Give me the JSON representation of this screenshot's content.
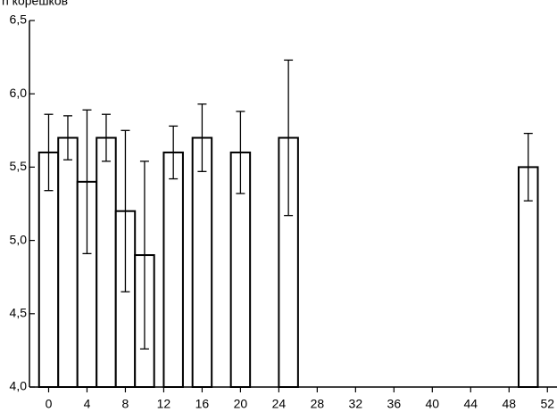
{
  "chart_data": {
    "type": "bar",
    "y_label": "n корешков",
    "x": [
      0,
      2,
      4,
      6,
      8,
      10,
      13,
      16,
      20,
      25,
      50
    ],
    "series": [
      {
        "color": "#000000",
        "values": [
          5.6,
          5.7,
          5.4,
          5.7,
          5.2,
          4.9,
          5.6,
          5.7,
          5.6,
          5.7,
          5.5
        ],
        "errors": [
          0.26,
          0.15,
          0.49,
          0.16,
          0.55,
          0.64,
          0.18,
          0.23,
          0.28,
          0.53,
          0.23
        ]
      }
    ],
    "xlim": [
      -2,
      53
    ],
    "xticks": [
      0,
      4,
      8,
      12,
      16,
      20,
      24,
      28,
      32,
      36,
      40,
      44,
      48,
      52
    ],
    "ylim": [
      4.0,
      6.5
    ],
    "yticks": [
      {
        "value": 4.0,
        "label": "4,0"
      },
      {
        "value": 4.5,
        "label": "4,5"
      },
      {
        "value": 5.0,
        "label": "5,0"
      },
      {
        "value": 5.5,
        "label": "5,5"
      },
      {
        "value": 6.0,
        "label": "6,0"
      },
      {
        "value": 6.5,
        "label": "6,5"
      }
    ]
  }
}
